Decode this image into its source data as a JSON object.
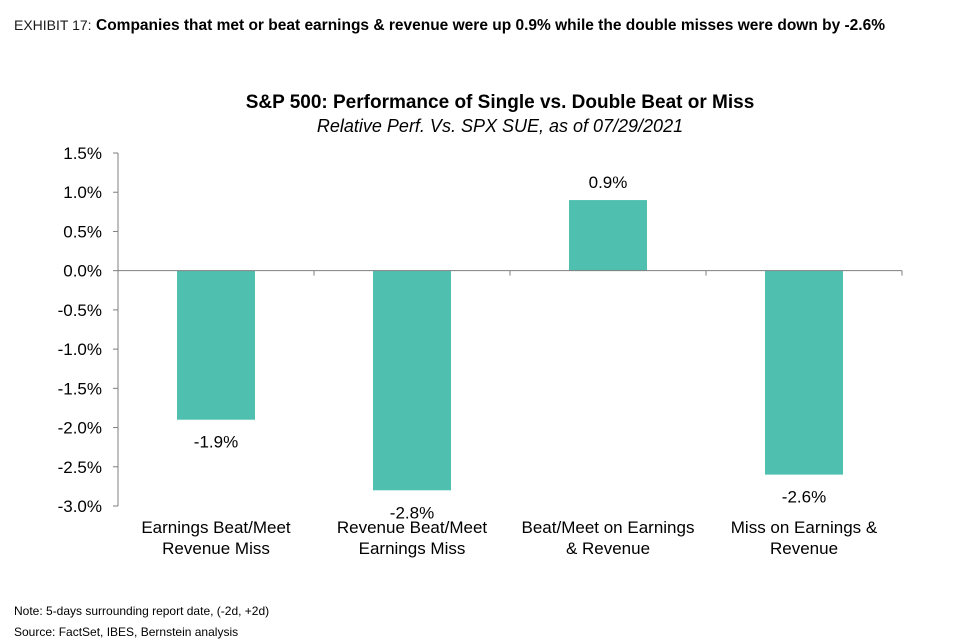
{
  "header": {
    "exhibit_label": "EXHIBIT 17:",
    "headline": "Companies that met or beat earnings & revenue were up 0.9% while the double misses were down by -2.6%"
  },
  "chart_data": {
    "type": "bar",
    "title": "S&P 500: Performance of Single vs. Double Beat or Miss",
    "subtitle": "Relative Perf. Vs. SPX SUE, as of 07/29/2021",
    "categories": [
      [
        "Earnings Beat/Meet",
        "Revenue Miss"
      ],
      [
        "Revenue Beat/Meet",
        "Earnings Miss"
      ],
      [
        "Beat/Meet on Earnings",
        "& Revenue"
      ],
      [
        "Miss on Earnings &",
        "Revenue"
      ]
    ],
    "values": [
      -1.9,
      -2.8,
      0.9,
      -2.6
    ],
    "data_labels": [
      "-1.9%",
      "-2.8%",
      "0.9%",
      "-2.6%"
    ],
    "ylim": [
      -3.0,
      1.5
    ],
    "yticks": [
      1.5,
      1.0,
      0.5,
      0.0,
      -0.5,
      -1.0,
      -1.5,
      -2.0,
      -2.5,
      -3.0
    ],
    "ytick_labels": [
      "1.5%",
      "1.0%",
      "0.5%",
      "0.0%",
      "-0.5%",
      "-1.0%",
      "-1.5%",
      "-2.0%",
      "-2.5%",
      "-3.0%"
    ],
    "xlabel": "",
    "ylabel": "",
    "bar_color": "#4fc0b0",
    "grid": false
  },
  "footer": {
    "note": "Note: 5-days surrounding report date, (-2d, +2d)",
    "source": "Source:  FactSet, IBES, Bernstein analysis"
  }
}
